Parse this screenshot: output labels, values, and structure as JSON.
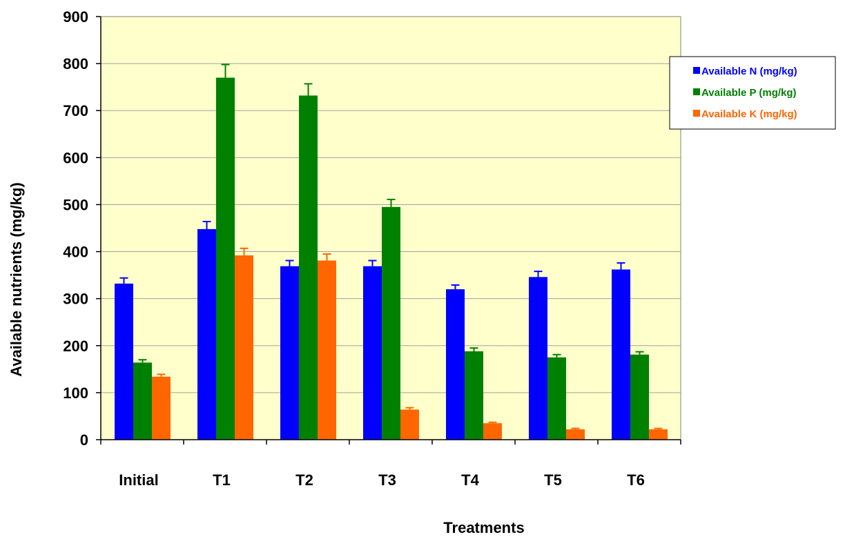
{
  "chart_data": {
    "type": "bar",
    "title": "",
    "xlabel": "Treatments",
    "ylabel": "Available nutrients (mg/kg)",
    "categories": [
      "Initial",
      "T1",
      "T2",
      "T3",
      "T4",
      "T5",
      "T6"
    ],
    "ylim": [
      0,
      900
    ],
    "yticks": [
      0,
      100,
      200,
      300,
      400,
      500,
      600,
      700,
      800,
      900
    ],
    "grid": true,
    "legend_position": "top-right",
    "plot_background": "#ffffcc",
    "series": [
      {
        "name": "Available N (mg/kg)",
        "color": "#0000ff",
        "values": [
          332,
          448,
          369,
          369,
          320,
          346,
          362
        ],
        "errors": [
          12,
          16,
          12,
          12,
          9,
          12,
          14
        ]
      },
      {
        "name": "Available P (mg/kg)",
        "color": "#008000",
        "values": [
          164,
          770,
          732,
          495,
          188,
          175,
          181
        ],
        "errors": [
          6,
          28,
          25,
          16,
          7,
          6,
          6
        ]
      },
      {
        "name": "Available K (mg/kg)",
        "color": "#ff6600",
        "values": [
          134,
          392,
          381,
          64,
          35,
          22,
          22
        ],
        "errors": [
          5,
          15,
          14,
          4,
          2,
          2,
          2
        ]
      }
    ]
  }
}
